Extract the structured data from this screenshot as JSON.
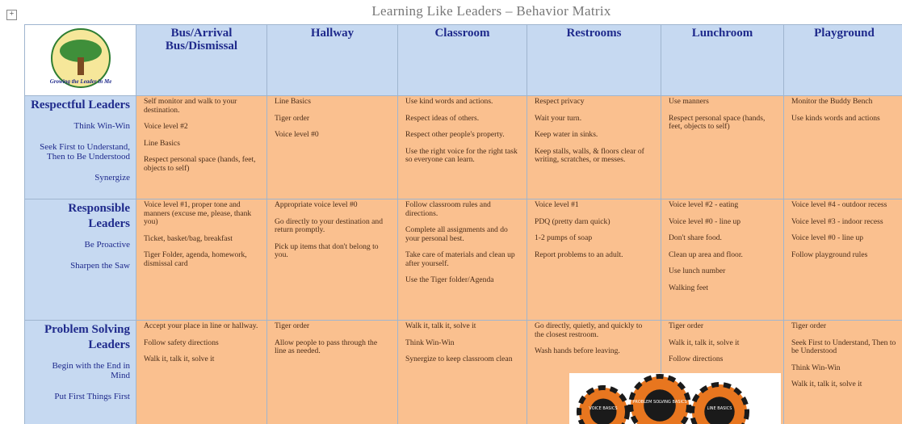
{
  "title": "Learning Like Leaders – Behavior Matrix",
  "logo": {
    "caption": "Growing the Leader in Me"
  },
  "table": {
    "header": [
      "Bus/Arrival Bus/Dismissal",
      "Hallway",
      "Classroom",
      "Restrooms",
      "Lunchroom",
      "Playground"
    ],
    "rows": [
      {
        "label": "Respectful Leaders",
        "habits": [
          "Think Win-Win",
          "Seek First to Understand, Then to Be Understood",
          "Synergize"
        ],
        "cells": [
          [
            "Self monitor and walk to your destination.",
            "Voice level #2",
            "Line Basics",
            "Respect personal space (hands, feet, objects to self)"
          ],
          [
            "Line Basics",
            "Tiger order",
            "Voice level #0"
          ],
          [
            "Use kind words and actions.",
            "Respect ideas of others.",
            "Respect other people's property.",
            "Use the right voice for the right task so everyone can learn."
          ],
          [
            "Respect privacy",
            "Wait your turn.",
            "Keep water in sinks.",
            "Keep stalls, walls, & floors clear of writing, scratches, or messes."
          ],
          [
            "Use manners",
            "Respect personal space (hands, feet, objects to self)"
          ],
          [
            "Monitor the Buddy Bench",
            "Use kinds words and actions"
          ]
        ]
      },
      {
        "label": "Responsible Leaders",
        "habits": [
          "Be Proactive",
          "Sharpen the Saw"
        ],
        "cells": [
          [
            "Voice level #1, proper tone and manners (excuse me, please, thank you)",
            "Ticket, basket/bag, breakfast",
            "Tiger Folder, agenda, homework, dismissal card"
          ],
          [
            "Appropriate voice level #0",
            "Go directly to your destination and return promptly.",
            "Pick up items that don't belong to you."
          ],
          [
            "Follow classroom rules and directions.",
            "Complete all assignments and do your personal best.",
            "Take care of materials and clean up after yourself.",
            "Use the Tiger folder/Agenda"
          ],
          [
            "Voice level #1",
            "PDQ (pretty darn quick)",
            "1-2 pumps of soap",
            "Report problems to an adult."
          ],
          [
            "Voice level #2 - eating",
            "Voice level #0 - line up",
            "Don't share food.",
            "Clean up area and floor.",
            "Use lunch number",
            "Walking feet"
          ],
          [
            "Voice level #4 - outdoor recess",
            "Voice level #3 - indoor recess",
            "Voice level #0 - line up",
            "Follow playground rules"
          ]
        ]
      },
      {
        "label": "Problem Solving Leaders",
        "habits": [
          "Begin with the End in Mind",
          "Put First Things First"
        ],
        "cells": [
          [
            "Accept your place in line or hallway.",
            "Follow safety directions",
            "Walk it, talk it, solve it"
          ],
          [
            "Tiger order",
            "Allow people to pass through the line as needed."
          ],
          [
            "Walk it, talk it, solve it",
            "Think Win-Win",
            "Synergize to keep classroom clean"
          ],
          [
            "Go directly, quietly, and quickly to the closest restroom.",
            "Wash hands before leaving."
          ],
          [
            "Tiger order",
            "Walk it, talk it, solve it",
            "Follow directions"
          ],
          [
            "Tiger order",
            "Seek First to Understand, Then to be Understood",
            "Think Win-Win",
            "Walk it, talk it, solve it"
          ]
        ]
      }
    ]
  },
  "stickers": [
    "VOICE BASICS",
    "PROBLEM SOLVING BASICS",
    "LINE BASICS"
  ]
}
